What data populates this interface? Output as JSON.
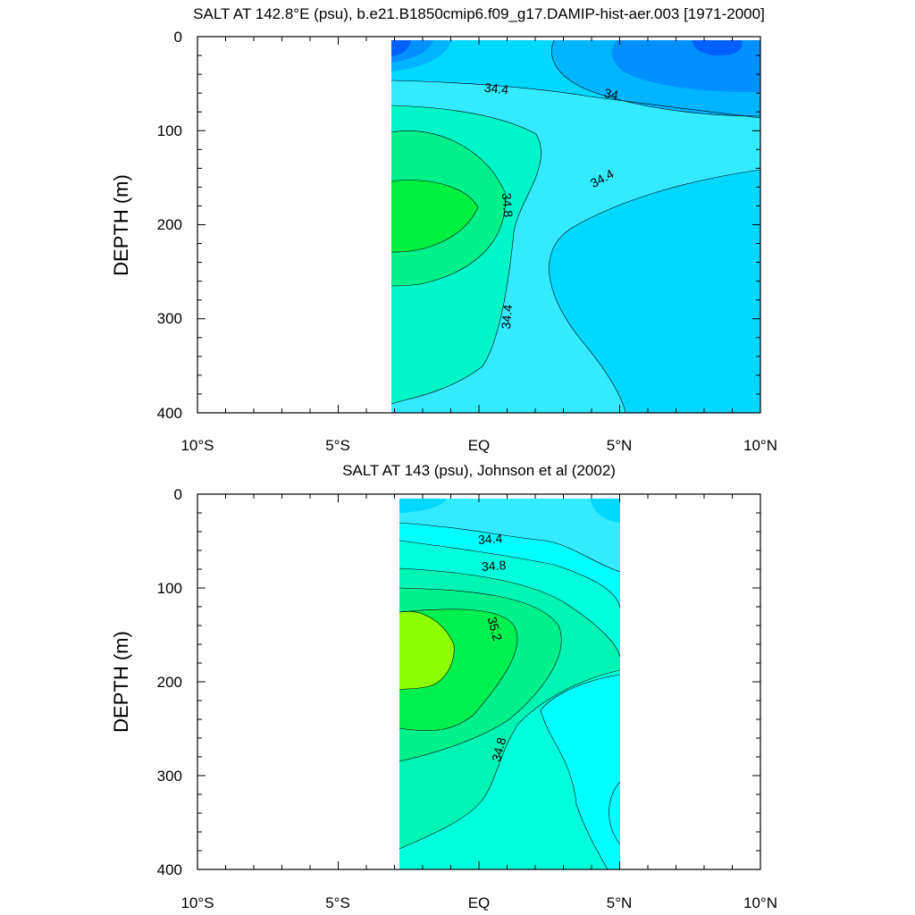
{
  "chart_data": [
    {
      "type": "contour",
      "title": "SALT AT 142.8°E (psu), b.e21.B1850cmip6.f09_g17.DAMIP-hist-aer.003 [1971-2000]",
      "ylabel": "DEPTH (m)",
      "xlim": [
        -10,
        10
      ],
      "ylim": [
        400,
        0
      ],
      "x_ticks": [
        "10°S",
        "5°S",
        "EQ",
        "5°N",
        "10°N"
      ],
      "y_ticks": [
        "0",
        "100",
        "200",
        "300",
        "400"
      ],
      "data_extent_lat": [
        -3,
        10
      ],
      "contour_labels": [
        "34.4",
        "34",
        "34.4",
        "34.8",
        "34.4"
      ],
      "colors": [
        "#005fff",
        "#0090ff",
        "#00b4ff",
        "#00d8ff",
        "#33eaff",
        "#00ffff",
        "#00f5c8",
        "#00f08a",
        "#00f040"
      ]
    },
    {
      "type": "contour",
      "title": "SALT AT 143 (psu), Johnson et al (2002)",
      "ylabel": "DEPTH (m)",
      "xlim": [
        -10,
        10
      ],
      "ylim": [
        400,
        0
      ],
      "x_ticks": [
        "10°S",
        "5°S",
        "EQ",
        "5°N",
        "10°N"
      ],
      "y_ticks": [
        "0",
        "100",
        "200",
        "300",
        "400"
      ],
      "data_extent_lat": [
        -2.8,
        5
      ],
      "contour_labels": [
        "34.4",
        "34.8",
        "35.2",
        "34.8"
      ],
      "colors": [
        "#33eaff",
        "#00ffff",
        "#00ffdc",
        "#00f5b4",
        "#00f08c",
        "#00f050",
        "#8cff00"
      ]
    }
  ]
}
